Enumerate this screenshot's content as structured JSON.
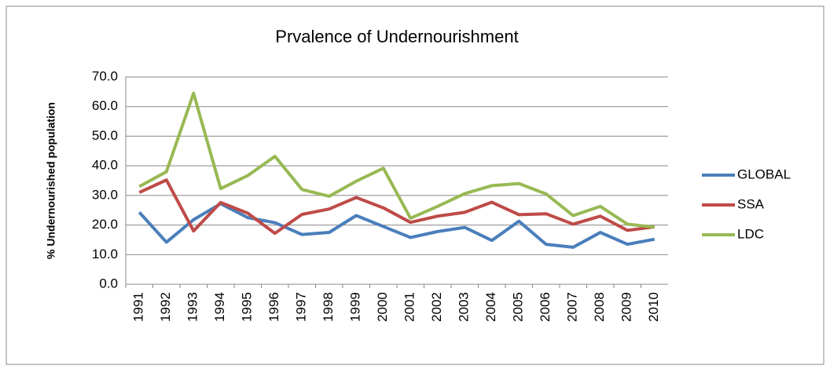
{
  "chart_data": {
    "type": "line",
    "title": "Prvalence of Undernourishment",
    "y_label": "% Undernourished population",
    "categories": [
      "1991",
      "1992",
      "1993",
      "1994",
      "1995",
      "1996",
      "1997",
      "1998",
      "1999",
      "2000",
      "2001",
      "2002",
      "2003",
      "2004",
      "2005",
      "2006",
      "2007",
      "2008",
      "2009",
      "2010"
    ],
    "series": [
      {
        "name": "GLOBAL",
        "color": "#4a7ebb",
        "values": [
          24.3,
          14.2,
          21.8,
          27.2,
          22.5,
          20.8,
          16.8,
          17.5,
          23.2,
          19.5,
          15.8,
          17.8,
          19.2,
          14.8,
          21.3,
          13.5,
          12.5,
          17.5,
          13.5,
          15.2
        ]
      },
      {
        "name": "SSA",
        "color": "#be4b48",
        "values": [
          31.0,
          35.2,
          18.0,
          27.6,
          24.0,
          17.2,
          23.6,
          25.4,
          29.3,
          25.8,
          20.9,
          23.0,
          24.3,
          27.7,
          23.5,
          23.8,
          20.3,
          23.0,
          18.2,
          19.4
        ]
      },
      {
        "name": "LDC",
        "color": "#98b954",
        "values": [
          33.0,
          38.0,
          64.5,
          32.3,
          36.7,
          43.2,
          32.0,
          29.7,
          34.8,
          39.2,
          22.3,
          26.3,
          30.6,
          33.3,
          34.0,
          30.5,
          23.2,
          26.3,
          20.3,
          19.3
        ]
      }
    ],
    "ylim": [
      0,
      70
    ],
    "yticks": [
      {
        "value": 0,
        "label": "0.0"
      },
      {
        "value": 10,
        "label": "10.0"
      },
      {
        "value": 20,
        "label": "20.0"
      },
      {
        "value": 30,
        "label": "30.0"
      },
      {
        "value": 40,
        "label": "40.0"
      },
      {
        "value": 50,
        "label": "50.0"
      },
      {
        "value": 60,
        "label": "60.0"
      },
      {
        "value": 70,
        "label": "70.0"
      }
    ],
    "grid": true,
    "legend": "right"
  }
}
